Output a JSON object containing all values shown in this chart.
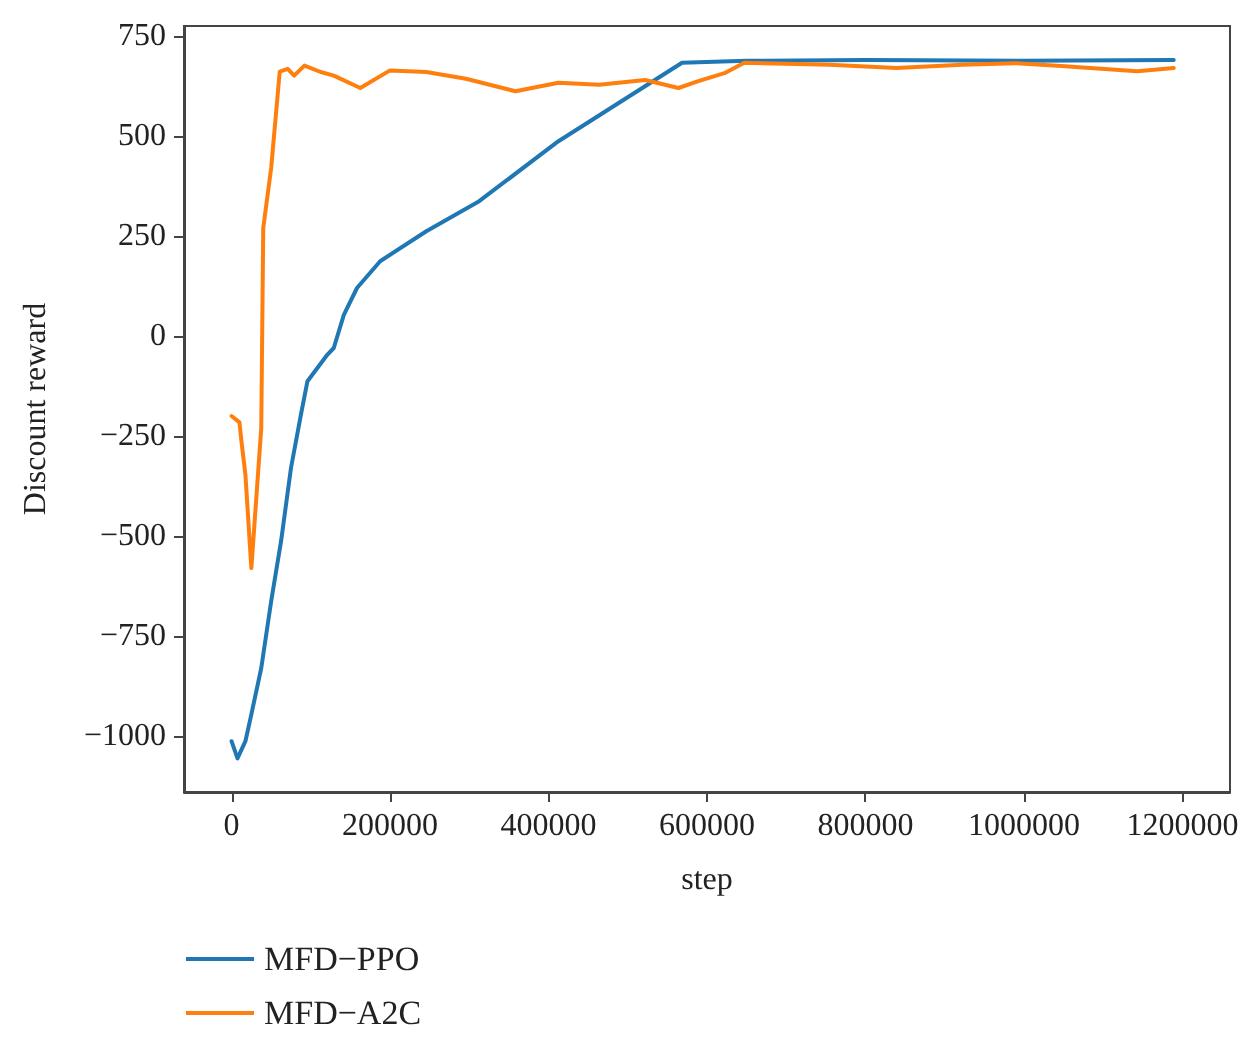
{
  "chart_data": {
    "type": "line",
    "xlabel": "step",
    "ylabel": "Discount reward",
    "xlim": [
      -60000,
      1260000
    ],
    "xticks": [
      0,
      200000,
      400000,
      600000,
      800000,
      1000000,
      1200000
    ],
    "ylim": [
      -1140,
      775
    ],
    "yticks": [
      {
        "value": -1000,
        "label": "−1000"
      },
      {
        "value": -750,
        "label": "−750"
      },
      {
        "value": -500,
        "label": "−500"
      },
      {
        "value": -250,
        "label": "−250"
      },
      0,
      250,
      500,
      750
    ],
    "legend": "bottom left",
    "marker": "none",
    "line_style": "solid",
    "series": [
      {
        "name": "MFD−PPO",
        "color": "#1f77b4",
        "x": [
          0,
          7500,
          17500,
          25000,
          37500,
          50000,
          62500,
          75000,
          87500,
          95800,
          120800,
          129000,
          141700,
          158300,
          187500,
          245800,
          312500,
          412500,
          568500,
          650000,
          800000,
          1000000,
          1189000
        ],
        "values": [
          -1013,
          -1056,
          -1013,
          -946,
          -830,
          -663,
          -513,
          -330,
          -197,
          -113,
          -47,
          -30,
          53,
          120,
          187,
          262,
          337,
          487,
          683,
          688,
          690,
          688,
          690
        ]
      },
      {
        "name": "MFD−A2C",
        "color": "#ff7f0e",
        "x": [
          0,
          10000,
          12500,
          17500,
          25000,
          37500,
          40000,
          50000,
          60800,
          70800,
          79000,
          92000,
          112500,
          129000,
          162500,
          200000,
          245800,
          295800,
          358300,
          412500,
          464000,
          522000,
          564000,
          589000,
          622000,
          647000,
          755000,
          839000,
          922000,
          989000,
          1047000,
          1143000,
          1189000
        ],
        "values": [
          -200,
          -216,
          -263,
          -347,
          -580,
          -230,
          270,
          420,
          661,
          668,
          651,
          676,
          660,
          651,
          620,
          664,
          660,
          643,
          612,
          633,
          628,
          640,
          620,
          637,
          657,
          683,
          678,
          670,
          678,
          682,
          675,
          662,
          670
        ]
      }
    ]
  }
}
